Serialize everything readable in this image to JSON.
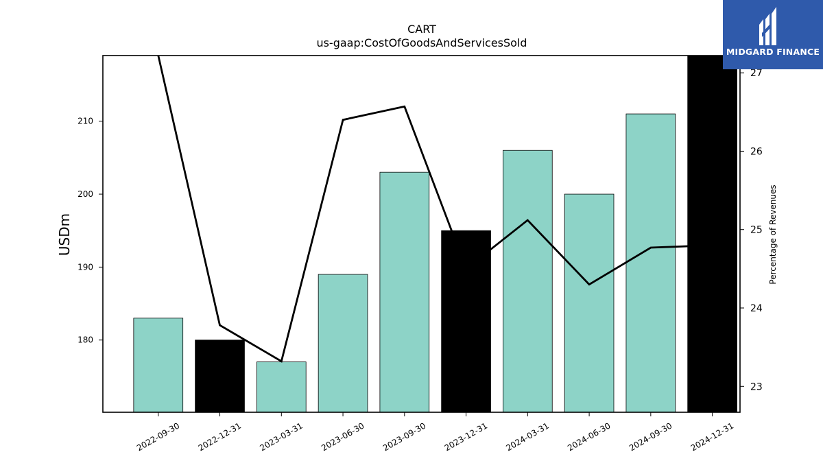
{
  "chart_data": {
    "type": "bar",
    "title": "CART",
    "subtitle": "us-gaap:CostOfGoodsAndServicesSold",
    "ylabel": "USDm",
    "y2label": "Percentage of Revenues",
    "categories": [
      "2022-09-30",
      "2022-12-31",
      "2023-03-31",
      "2023-06-30",
      "2023-09-30",
      "2023-12-31",
      "2024-03-31",
      "2024-06-30",
      "2024-09-30",
      "2024-12-31"
    ],
    "series": [
      {
        "type": "bar",
        "axis": "left",
        "values": [
          183,
          180,
          177,
          189,
          203,
          195,
          206,
          200,
          211,
          219
        ],
        "colors": [
          "#8dd3c7",
          "#000000",
          "#8dd3c7",
          "#8dd3c7",
          "#8dd3c7",
          "#000000",
          "#8dd3c7",
          "#8dd3c7",
          "#8dd3c7",
          "#000000"
        ]
      },
      {
        "type": "line",
        "axis": "right",
        "color": "#000000",
        "values": [
          27.3,
          23.78,
          23.32,
          26.4,
          26.57,
          24.5,
          25.12,
          24.3,
          24.77,
          24.8
        ]
      }
    ],
    "ylim": [
      170.1,
      219.0
    ],
    "yticks": [
      180,
      190,
      200,
      210
    ],
    "y2lim": [
      22.67,
      27.22
    ],
    "y2ticks": [
      23,
      24,
      25,
      26,
      27
    ],
    "grid": false,
    "legend": "none"
  },
  "logo": {
    "text": "MIDGARD FINANCE",
    "bg_color": "#2f5aab",
    "icon": "midgard-m-icon"
  }
}
